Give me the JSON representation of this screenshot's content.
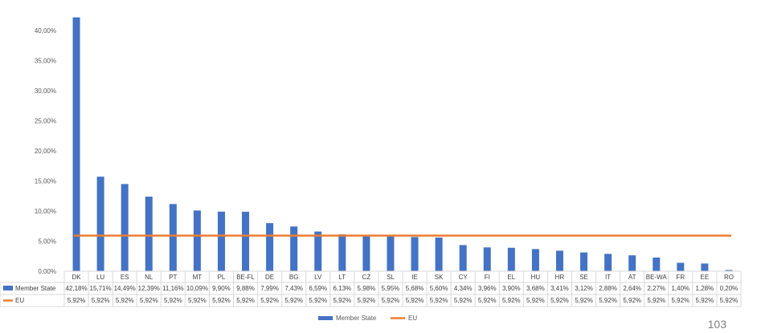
{
  "chart_data": {
    "type": "bar",
    "categories": [
      "DK",
      "LU",
      "ES",
      "NL",
      "PT",
      "MT",
      "PL",
      "BE-FL",
      "DE",
      "BG",
      "LV",
      "LT",
      "CZ",
      "SL",
      "IE",
      "SK",
      "CY",
      "FI",
      "EL",
      "HU",
      "HR",
      "SE",
      "IT",
      "AT",
      "BE-WA",
      "FR",
      "EE",
      "RO"
    ],
    "series": [
      {
        "name": "Member State",
        "type": "bar",
        "color": "#4472c4",
        "values": [
          42.18,
          15.71,
          14.49,
          12.39,
          11.16,
          10.09,
          9.9,
          9.88,
          7.99,
          7.43,
          6.59,
          6.13,
          5.98,
          5.95,
          5.68,
          5.6,
          4.34,
          3.96,
          3.9,
          3.68,
          3.41,
          3.12,
          2.88,
          2.64,
          2.27,
          1.4,
          1.28,
          0.2
        ],
        "labels": [
          "42,18%",
          "15,71%",
          "14,49%",
          "12,39%",
          "11,16%",
          "10,09%",
          "9,90%",
          "9,88%",
          "7,99%",
          "7,43%",
          "6,59%",
          "6,13%",
          "5,98%",
          "5,95%",
          "5,68%",
          "5,60%",
          "4,34%",
          "3,96%",
          "3,90%",
          "3,68%",
          "3,41%",
          "3,12%",
          "2,88%",
          "2,64%",
          "2,27%",
          "1,40%",
          "1,28%",
          "0,20%"
        ]
      },
      {
        "name": "EU",
        "type": "line",
        "color": "#ed7d31",
        "values": [
          5.92,
          5.92,
          5.92,
          5.92,
          5.92,
          5.92,
          5.92,
          5.92,
          5.92,
          5.92,
          5.92,
          5.92,
          5.92,
          5.92,
          5.92,
          5.92,
          5.92,
          5.92,
          5.92,
          5.92,
          5.92,
          5.92,
          5.92,
          5.92,
          5.92,
          5.92,
          5.92,
          5.92
        ],
        "labels": [
          "5,92%",
          "5,92%",
          "5,92%",
          "5,92%",
          "5,92%",
          "5,92%",
          "5,92%",
          "5,92%",
          "5,92%",
          "5,92%",
          "5,92%",
          "5,92%",
          "5,92%",
          "5,92%",
          "5,92%",
          "5,92%",
          "5,92%",
          "5,92%",
          "5,92%",
          "5,92%",
          "5,92%",
          "5,92%",
          "5,92%",
          "5,92%",
          "5,92%",
          "5,92%",
          "5,92%",
          "5,92%"
        ]
      }
    ],
    "y_ticks": [
      0,
      5,
      10,
      15,
      20,
      25,
      30,
      35,
      40
    ],
    "y_tick_labels": [
      "0,00%",
      "5,00%",
      "10,00%",
      "15,00%",
      "20,00%",
      "25,00%",
      "30,00%",
      "35,00%",
      "40,00%"
    ],
    "ylim": [
      0,
      44
    ],
    "grid": false,
    "legend_position": "bottom",
    "data_table": true,
    "title": "",
    "xlabel": "",
    "ylabel": ""
  },
  "corner_text": "103"
}
